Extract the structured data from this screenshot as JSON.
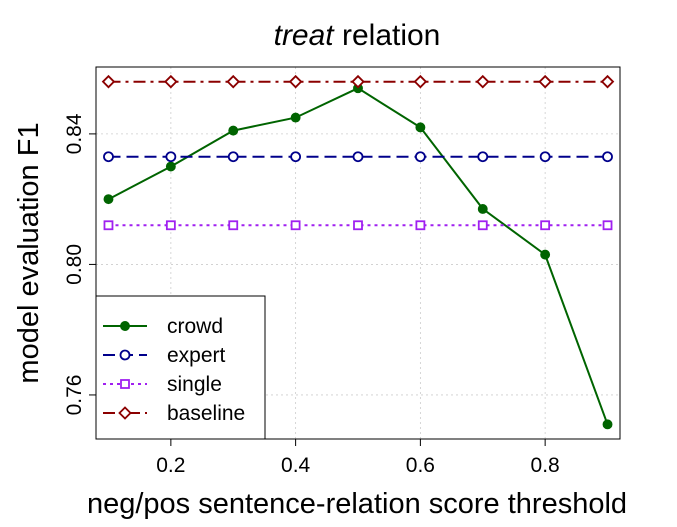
{
  "title": {
    "italic": "treat",
    "rest": " relation"
  },
  "chart_data": {
    "type": "line",
    "title": "treat relation",
    "xlabel": "neg/pos sentence-relation score threshold",
    "ylabel": "model evaluation F1",
    "x": [
      0.1,
      0.2,
      0.3,
      0.4,
      0.5,
      0.6,
      0.7,
      0.8,
      0.9
    ],
    "xlim": [
      0.08,
      0.92
    ],
    "ylim": [
      0.7465,
      0.8605
    ],
    "xticks": [
      0.2,
      0.4,
      0.6,
      0.8
    ],
    "xtick_labels": [
      "0.2",
      "0.4",
      "0.6",
      "0.8"
    ],
    "yticks": [
      0.76,
      0.8,
      0.84
    ],
    "ytick_labels": [
      "0.76",
      "0.80",
      "0.84"
    ],
    "grid": true,
    "legend_position": "bottom-left",
    "series": [
      {
        "name": "crowd",
        "color": "#006400",
        "marker": "filled-circle",
        "dash": "solid",
        "values": [
          0.82,
          0.83,
          0.841,
          0.845,
          0.854,
          0.842,
          0.817,
          0.803,
          0.751
        ]
      },
      {
        "name": "expert",
        "color": "#00008B",
        "marker": "open-circle",
        "dash": "dashed",
        "values": [
          0.833,
          0.833,
          0.833,
          0.833,
          0.833,
          0.833,
          0.833,
          0.833,
          0.833
        ]
      },
      {
        "name": "single",
        "color": "#A020F0",
        "marker": "open-square",
        "dash": "dotted",
        "values": [
          0.812,
          0.812,
          0.812,
          0.812,
          0.812,
          0.812,
          0.812,
          0.812,
          0.812
        ]
      },
      {
        "name": "baseline",
        "color": "#8B0000",
        "marker": "open-diamond",
        "dash": "dashdot",
        "values": [
          0.856,
          0.856,
          0.856,
          0.856,
          0.856,
          0.856,
          0.856,
          0.856,
          0.856
        ]
      }
    ]
  }
}
